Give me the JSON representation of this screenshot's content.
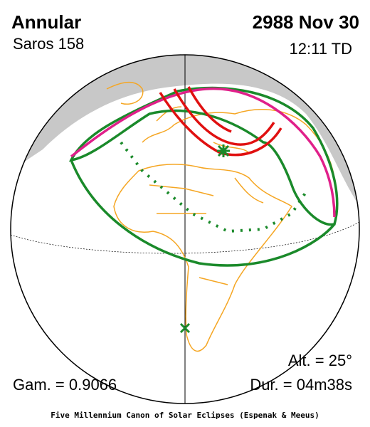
{
  "header": {
    "type": "Annular",
    "saros": "Saros 158",
    "date": "2988 Nov 30",
    "time": "12:11 TD"
  },
  "stats": {
    "altitude": "Alt. = 25°",
    "gamma": "Gam. = 0.9066",
    "duration": "Dur. = 04m38s"
  },
  "footer": "Five Millennium Canon of Solar Eclipses (Espenak & Meeus)"
}
